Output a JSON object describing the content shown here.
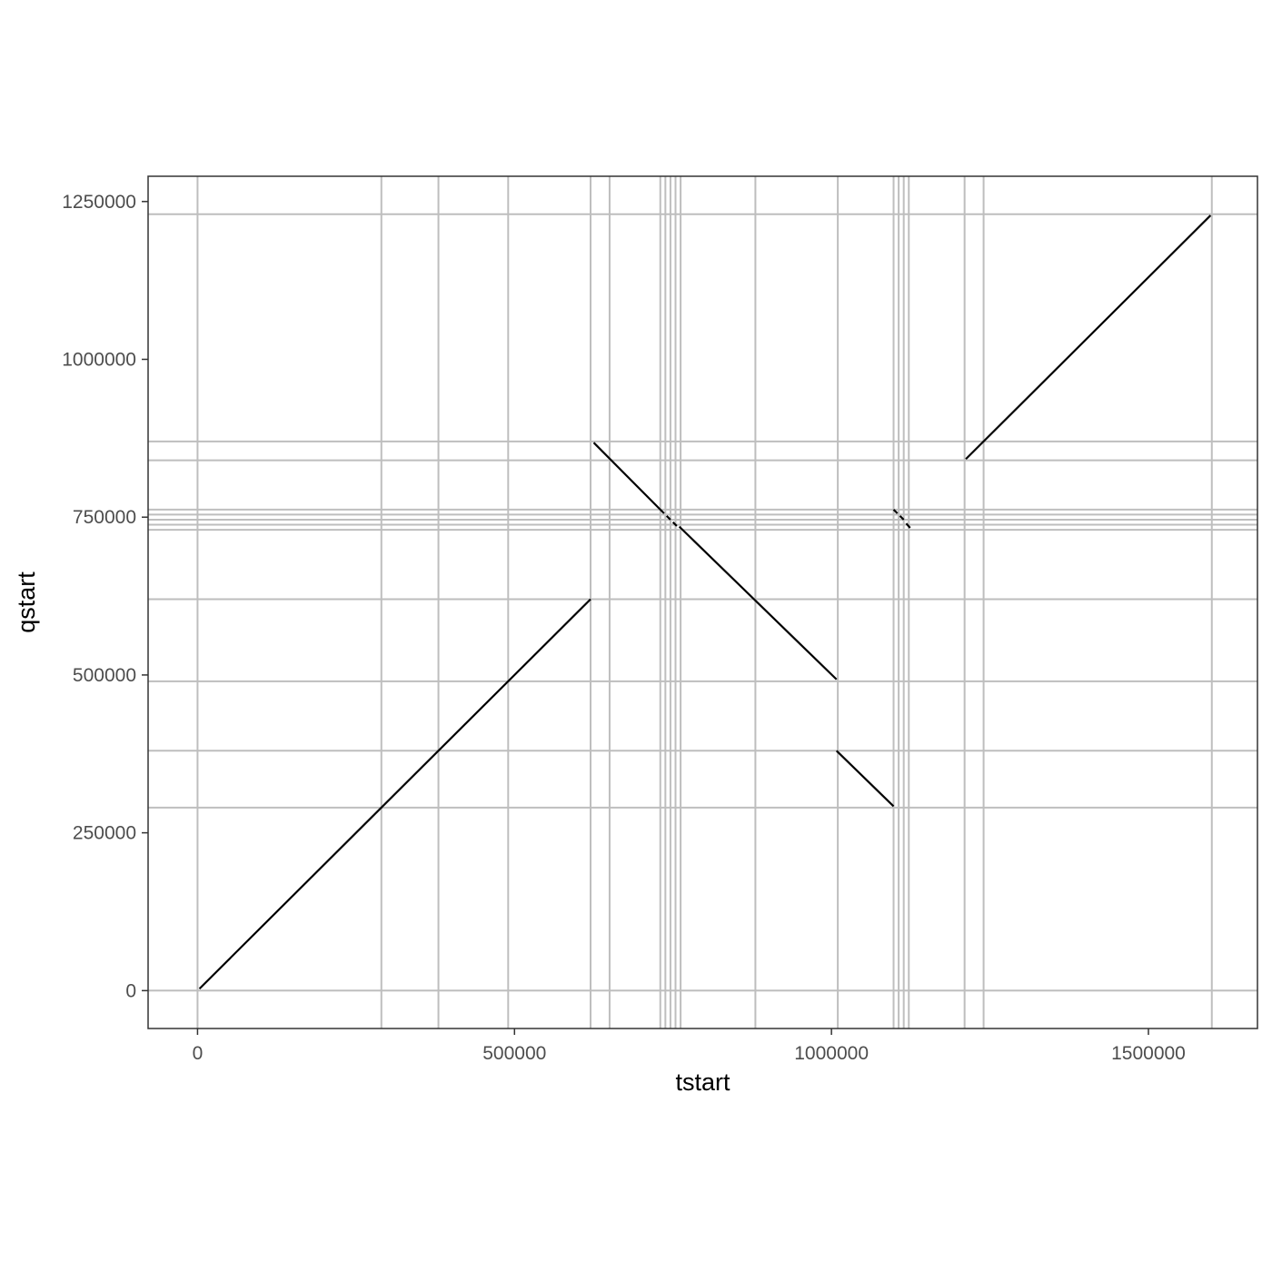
{
  "chart_data": {
    "type": "line",
    "xlabel": "tstart",
    "ylabel": "qstart",
    "xlim": [
      -78000,
      1672000
    ],
    "ylim": [
      -60000,
      1290000
    ],
    "x_ticks": [
      0,
      500000,
      1000000,
      1500000
    ],
    "x_tick_labels": [
      "0",
      "500000",
      "1000000",
      "1500000"
    ],
    "y_ticks": [
      0,
      250000,
      500000,
      750000,
      1000000,
      1250000
    ],
    "y_tick_labels": [
      "0",
      "250000",
      "500000",
      "750000",
      "1000000",
      "1250000"
    ],
    "reference_lines_x": [
      0,
      290000,
      380000,
      490000,
      620000,
      650000,
      730000,
      738000,
      746000,
      754000,
      762000,
      880000,
      1010000,
      1098000,
      1106000,
      1114000,
      1122000,
      1210000,
      1240000,
      1600000
    ],
    "reference_lines_y": [
      0,
      290000,
      380000,
      490000,
      620000,
      730000,
      738000,
      746000,
      754000,
      762000,
      840000,
      870000,
      1230000
    ],
    "grid_color": "#bebebe",
    "line_color": "#000000",
    "segments": [
      {
        "x": [
          3000,
          620000
        ],
        "y": [
          3000,
          620000
        ]
      },
      {
        "x": [
          625000,
          730000
        ],
        "y": [
          868000,
          762000
        ]
      },
      {
        "x": [
          730000,
          736000
        ],
        "y": [
          762000,
          756000
        ]
      },
      {
        "x": [
          740000,
          746000
        ],
        "y": [
          752000,
          746000
        ]
      },
      {
        "x": [
          750000,
          756000
        ],
        "y": [
          742000,
          736000
        ]
      },
      {
        "x": [
          760000,
          1008000
        ],
        "y": [
          735000,
          493000
        ]
      },
      {
        "x": [
          1008000,
          1098000
        ],
        "y": [
          380000,
          292000
        ]
      },
      {
        "x": [
          1098000,
          1104000
        ],
        "y": [
          762000,
          756000
        ]
      },
      {
        "x": [
          1108000,
          1114000
        ],
        "y": [
          752000,
          746000
        ]
      },
      {
        "x": [
          1118000,
          1124000
        ],
        "y": [
          740000,
          733000
        ]
      },
      {
        "x": [
          1212000,
          1598000
        ],
        "y": [
          842000,
          1228000
        ]
      }
    ]
  }
}
